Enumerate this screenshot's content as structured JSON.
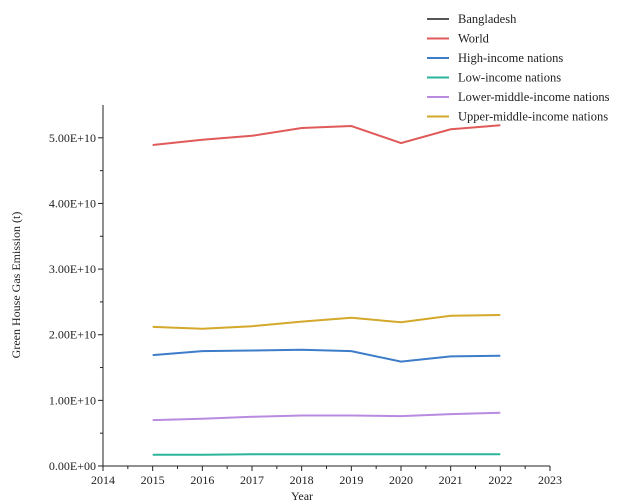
{
  "chart_data": {
    "type": "line",
    "xlabel": "Year",
    "ylabel": "Green House Gas Emission (t)",
    "xlim": [
      2014,
      2023
    ],
    "ylim": [
      0,
      55000000000
    ],
    "x_ticks": [
      2014,
      2015,
      2016,
      2017,
      2018,
      2019,
      2020,
      2021,
      2022,
      2023
    ],
    "y_ticks": [
      0,
      10000000000,
      20000000000,
      30000000000,
      40000000000,
      50000000000
    ],
    "y_tick_labels": [
      "0.00E+00",
      "1.00E+10",
      "2.00E+10",
      "3.00E+10",
      "4.00E+10",
      "5.00E+10"
    ],
    "grid": false,
    "legend_position": "top-right",
    "x": [
      2015,
      2016,
      2017,
      2018,
      2019,
      2020,
      2021,
      2022
    ],
    "series": [
      {
        "name": "Bangladesh",
        "color": "#555555",
        "values": [
          null,
          null,
          null,
          null,
          null,
          null,
          null,
          null
        ]
      },
      {
        "name": "World",
        "color": "#e05a5a",
        "values": [
          48900000000,
          49700000000,
          50300000000,
          51500000000,
          51800000000,
          49200000000,
          51300000000,
          51900000000
        ]
      },
      {
        "name": "High-income nations",
        "color": "#3d7cc9",
        "values": [
          16900000000,
          17500000000,
          17600000000,
          17700000000,
          17500000000,
          15900000000,
          16700000000,
          16800000000
        ]
      },
      {
        "name": "Low-income nations",
        "color": "#2bb59a",
        "values": [
          1700000000,
          1700000000,
          1800000000,
          1800000000,
          1800000000,
          1800000000,
          1800000000,
          1800000000
        ]
      },
      {
        "name": "Lower-middle-income nations",
        "color": "#b88be0",
        "values": [
          7000000000,
          7200000000,
          7500000000,
          7700000000,
          7700000000,
          7600000000,
          7900000000,
          8100000000
        ]
      },
      {
        "name": "Upper-middle-income nations",
        "color": "#d4a82a",
        "values": [
          21200000000,
          20900000000,
          21300000000,
          22000000000,
          22600000000,
          21900000000,
          22900000000,
          23000000000
        ]
      }
    ]
  }
}
